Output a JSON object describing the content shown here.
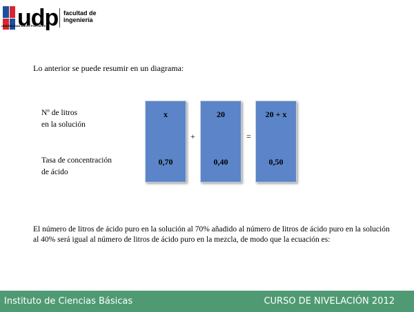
{
  "header": {
    "logo_text": "udp",
    "logo_subtext": "UNIVERSIDAD DIEGO PORTALES",
    "faculty_line1": "facultad de",
    "faculty_line2": "ingeniería"
  },
  "intro_text": "Lo anterior se puede resumir en un diagrama:",
  "diagram": {
    "row_labels": {
      "litros_line1": "Nº de litros",
      "litros_line2": "en la solución",
      "tasa_line1": "Tasa de concentración",
      "tasa_line2": "de ácido"
    },
    "boxes": [
      {
        "top": "x",
        "bottom": "0,70"
      },
      {
        "top": "20",
        "bottom": "0,40"
      },
      {
        "top": "20 + x",
        "bottom": "0,50"
      }
    ],
    "operators": {
      "plus": "+",
      "equals": "="
    },
    "box_color": "#5b85c8"
  },
  "conclusion_text": "El número de litros de ácido puro en la solución al 70% añadido al número de litros de ácido puro en la solución al 40% será igual al número de litros de ácido puro en la mezcla, de modo que la ecuación es:",
  "footer": {
    "left": "Instituto de Ciencias Básicas",
    "right": "CURSO DE NIVELACIÓN 2012",
    "color": "#4f9a73"
  }
}
